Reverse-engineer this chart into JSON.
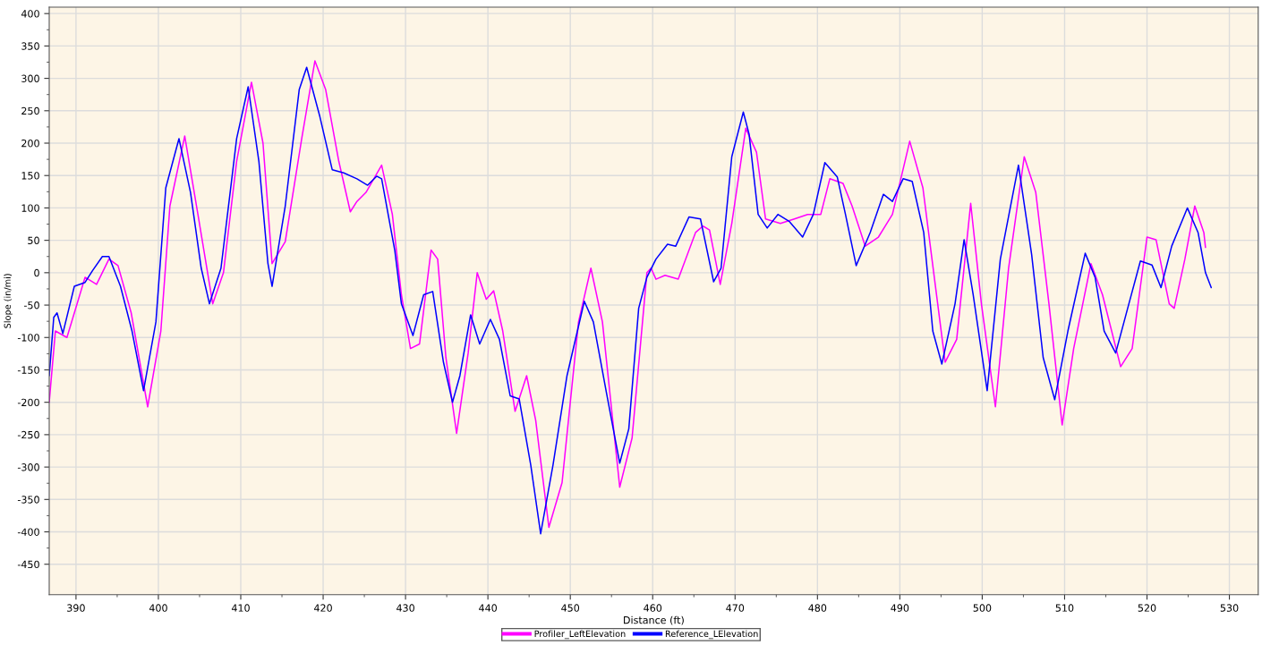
{
  "chart_data": {
    "type": "line",
    "xlabel": "Distance (ft)",
    "ylabel": "Slope (in/mi)",
    "xlim": [
      386.75,
      533.5
    ],
    "xticks": [
      390,
      400,
      410,
      420,
      430,
      440,
      450,
      460,
      470,
      480,
      490,
      500,
      510,
      520,
      530
    ],
    "ylim": [
      -497,
      410
    ],
    "yticks": [
      400,
      350,
      300,
      250,
      200,
      150,
      100,
      50,
      0,
      -50,
      -100,
      -150,
      -200,
      -250,
      -300,
      -350,
      -400,
      -450
    ],
    "grid": true,
    "legend": "bottom",
    "line_style": "solid",
    "series": [
      {
        "name": "Profiler_LeftElevation",
        "color": "#ff00ff",
        "x": [
          386.75,
          387.5,
          388.9,
          391.1,
          392.5,
          394.0,
          395.1,
          396.7,
          398.7,
          400.3,
          401.4,
          403.2,
          404.8,
          406.6,
          407.9,
          409.5,
          411.3,
          412.7,
          413.8,
          415.4,
          417.4,
          419.0,
          420.3,
          421.9,
          423.3,
          424.1,
          425.2,
          427.1,
          428.4,
          429.5,
          430.6,
          431.7,
          433.1,
          433.9,
          434.9,
          436.2,
          437.6,
          438.7,
          439.8,
          440.7,
          441.8,
          443.3,
          444.7,
          445.8,
          447.4,
          449.0,
          451.0,
          452.5,
          453.9,
          456.0,
          457.5,
          459.3,
          459.8,
          460.4,
          461.5,
          463.1,
          465.2,
          466.1,
          466.9,
          468.2,
          469.6,
          471.3,
          472.6,
          473.7,
          475.5,
          477.2,
          478.8,
          480.4,
          481.5,
          483.1,
          484.2,
          485.8,
          487.4,
          489.1,
          491.2,
          492.8,
          493.9,
          495.5,
          496.9,
          498.6,
          499.9,
          501.6,
          503.2,
          505.1,
          506.5,
          508.1,
          509.7,
          511.1,
          513.2,
          514.6,
          516.8,
          518.2,
          520.0,
          521.1,
          522.7,
          523.3,
          524.6,
          525.8,
          526.9,
          527.1
        ],
        "values": [
          -200,
          -90,
          -100,
          -7,
          -18,
          21,
          11,
          -62,
          -207,
          -90,
          103,
          211,
          90,
          -48,
          0,
          172,
          294,
          200,
          14,
          48,
          207,
          327,
          283,
          172,
          94,
          110,
          124,
          166,
          90,
          -34,
          -117,
          -110,
          35,
          21,
          -131,
          -248,
          -124,
          0,
          -41,
          -28,
          -90,
          -214,
          -159,
          -228,
          -393,
          -324,
          -76,
          7,
          -76,
          -331,
          -255,
          0,
          7,
          -10,
          -4,
          -10,
          62,
          72,
          66,
          -18,
          76,
          223,
          186,
          83,
          76,
          83,
          90,
          90,
          145,
          138,
          103,
          41,
          55,
          90,
          203,
          131,
          21,
          -138,
          -103,
          107,
          -48,
          -207,
          7,
          179,
          124,
          -48,
          -235,
          -117,
          14,
          -34,
          -145,
          -117,
          55,
          51,
          -48,
          -55,
          21,
          103,
          62,
          39
        ]
      },
      {
        "name": "Reference_LElevation",
        "color": "#0000ff",
        "x": [
          386.75,
          387.3,
          387.7,
          388.4,
          389.8,
          391.1,
          392.0,
          393.2,
          394.0,
          395.4,
          396.8,
          398.2,
          399.7,
          400.9,
          402.5,
          403.9,
          405.2,
          406.2,
          407.6,
          409.5,
          410.9,
          412.2,
          413.3,
          413.8,
          415.4,
          417.1,
          418.0,
          419.6,
          421.1,
          422.5,
          424.1,
          425.4,
          426.5,
          427.1,
          428.7,
          429.5,
          430.9,
          432.2,
          433.3,
          434.6,
          435.7,
          436.6,
          437.9,
          439.0,
          440.3,
          441.4,
          442.7,
          443.8,
          445.2,
          446.4,
          447.9,
          449.6,
          451.7,
          452.8,
          454.4,
          456.0,
          457.1,
          458.3,
          459.3,
          460.4,
          461.8,
          462.8,
          464.4,
          465.8,
          467.4,
          468.3,
          469.6,
          471.0,
          471.7,
          472.8,
          473.9,
          475.2,
          476.6,
          478.2,
          479.5,
          480.9,
          482.4,
          483.4,
          484.7,
          486.4,
          488.0,
          489.1,
          490.4,
          491.5,
          492.9,
          494.0,
          495.1,
          496.7,
          497.8,
          498.9,
          500.6,
          502.2,
          504.4,
          506.0,
          507.4,
          508.8,
          510.4,
          512.5,
          513.7,
          514.8,
          516.2,
          517.8,
          519.2,
          520.6,
          521.7,
          523.0,
          524.9,
          526.2,
          527.1,
          527.8
        ],
        "values": [
          -159,
          -69,
          -62,
          -94,
          -21,
          -15,
          3,
          25,
          25,
          -21,
          -90,
          -182,
          -76,
          131,
          207,
          124,
          7,
          -48,
          7,
          207,
          287,
          172,
          14,
          -21,
          103,
          283,
          317,
          241,
          159,
          154,
          145,
          135,
          149,
          145,
          34,
          -48,
          -97,
          -34,
          -29,
          -138,
          -200,
          -159,
          -65,
          -110,
          -72,
          -103,
          -190,
          -195,
          -297,
          -403,
          -297,
          -159,
          -44,
          -76,
          -186,
          -294,
          -241,
          -55,
          -7,
          21,
          44,
          41,
          86,
          83,
          -14,
          7,
          179,
          248,
          214,
          90,
          69,
          90,
          79,
          55,
          90,
          170,
          148,
          90,
          11,
          62,
          121,
          110,
          145,
          141,
          62,
          -90,
          -141,
          -48,
          51,
          -34,
          -182,
          21,
          166,
          28,
          -131,
          -196,
          -90,
          30,
          -7,
          -90,
          -124,
          -48,
          18,
          12,
          -23,
          41,
          100,
          62,
          0,
          -23
        ]
      }
    ]
  }
}
